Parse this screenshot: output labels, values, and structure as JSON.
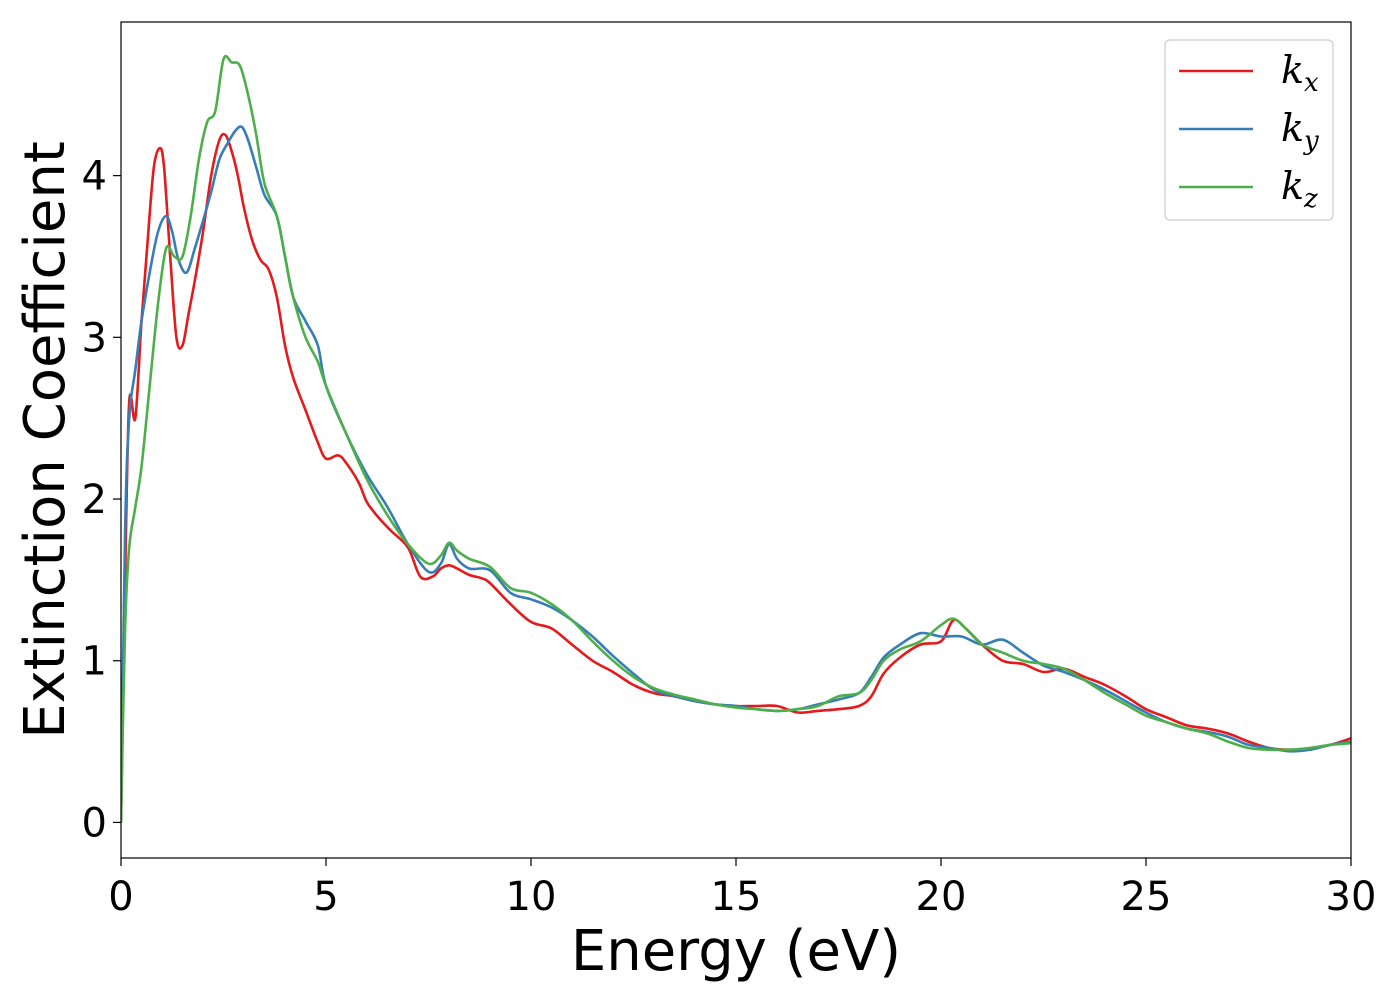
{
  "chart_data": {
    "type": "line",
    "xlabel": "Energy (eV)",
    "ylabel": "Extinction Coefficient",
    "xlim": [
      0,
      30
    ],
    "ylim": [
      -0.22,
      4.95
    ],
    "xticks": [
      0,
      5,
      10,
      15,
      20,
      25,
      30
    ],
    "yticks": [
      0,
      1,
      2,
      3,
      4
    ],
    "grid": false,
    "legend_position": "top-right",
    "series": [
      {
        "name": "k_x",
        "label_base": "k",
        "label_sub": "x",
        "color": "#e41a1c",
        "x": [
          0,
          0.1,
          0.2,
          0.35,
          0.5,
          0.65,
          0.8,
          0.95,
          1.05,
          1.2,
          1.35,
          1.5,
          1.65,
          1.8,
          2.0,
          2.2,
          2.4,
          2.55,
          2.7,
          2.85,
          3.0,
          3.2,
          3.4,
          3.6,
          3.8,
          4.0,
          4.2,
          4.5,
          4.8,
          5.0,
          5.3,
          5.5,
          5.8,
          6.0,
          6.3,
          6.6,
          7.0,
          7.3,
          7.6,
          7.8,
          8.0,
          8.2,
          8.5,
          8.8,
          9.0,
          9.5,
          10.0,
          10.5,
          11.0,
          11.5,
          12.0,
          12.5,
          13.0,
          13.5,
          14.0,
          14.5,
          15.0,
          15.5,
          16.0,
          16.5,
          17.0,
          17.5,
          18.0,
          18.3,
          18.6,
          19.0,
          19.5,
          20.0,
          20.3,
          20.6,
          21.0,
          21.5,
          22.0,
          22.5,
          23.0,
          23.5,
          24.0,
          24.5,
          25.0,
          25.5,
          26.0,
          26.5,
          27.0,
          27.5,
          28.0,
          28.5,
          29.0,
          29.5,
          30.0
        ],
        "y": [
          0,
          1.5,
          2.6,
          2.5,
          3.1,
          3.6,
          4.05,
          4.17,
          4.05,
          3.5,
          3.0,
          2.95,
          3.15,
          3.35,
          3.65,
          4.0,
          4.22,
          4.25,
          4.15,
          4.0,
          3.8,
          3.6,
          3.48,
          3.42,
          3.25,
          2.95,
          2.75,
          2.55,
          2.35,
          2.25,
          2.27,
          2.22,
          2.1,
          1.98,
          1.88,
          1.8,
          1.7,
          1.52,
          1.52,
          1.57,
          1.59,
          1.57,
          1.53,
          1.51,
          1.48,
          1.35,
          1.24,
          1.2,
          1.1,
          1.0,
          0.93,
          0.85,
          0.8,
          0.78,
          0.75,
          0.73,
          0.72,
          0.72,
          0.72,
          0.68,
          0.69,
          0.7,
          0.72,
          0.78,
          0.92,
          1.02,
          1.1,
          1.12,
          1.25,
          1.2,
          1.1,
          1.0,
          0.98,
          0.93,
          0.95,
          0.9,
          0.85,
          0.78,
          0.7,
          0.65,
          0.6,
          0.58,
          0.55,
          0.5,
          0.46,
          0.45,
          0.46,
          0.48,
          0.52
        ]
      },
      {
        "name": "k_y",
        "label_base": "k",
        "label_sub": "y",
        "color": "#377eb8",
        "x": [
          0,
          0.1,
          0.2,
          0.35,
          0.5,
          0.7,
          0.9,
          1.1,
          1.25,
          1.4,
          1.6,
          1.8,
          2.0,
          2.2,
          2.4,
          2.6,
          2.8,
          2.95,
          3.1,
          3.3,
          3.5,
          3.8,
          4.0,
          4.2,
          4.5,
          4.8,
          5.0,
          5.5,
          6.0,
          6.5,
          7.0,
          7.5,
          7.8,
          8.0,
          8.2,
          8.5,
          9.0,
          9.5,
          10.0,
          10.5,
          11.0,
          11.5,
          12.0,
          12.5,
          13.0,
          13.5,
          14.0,
          14.5,
          15.0,
          15.5,
          16.0,
          16.5,
          17.0,
          17.5,
          18.0,
          18.3,
          18.6,
          19.0,
          19.5,
          20.0,
          20.5,
          21.0,
          21.5,
          22.0,
          22.5,
          23.0,
          23.5,
          24.0,
          24.5,
          25.0,
          25.5,
          26.0,
          26.5,
          27.0,
          27.5,
          28.0,
          28.5,
          29.0,
          29.5,
          30.0
        ],
        "y": [
          0,
          1.8,
          2.5,
          2.8,
          3.1,
          3.4,
          3.65,
          3.75,
          3.65,
          3.48,
          3.4,
          3.55,
          3.72,
          3.9,
          4.1,
          4.2,
          4.28,
          4.3,
          4.22,
          4.05,
          3.88,
          3.75,
          3.5,
          3.25,
          3.1,
          2.95,
          2.7,
          2.4,
          2.15,
          1.95,
          1.72,
          1.55,
          1.6,
          1.72,
          1.63,
          1.57,
          1.56,
          1.42,
          1.38,
          1.33,
          1.25,
          1.15,
          1.03,
          0.92,
          0.82,
          0.78,
          0.75,
          0.73,
          0.72,
          0.7,
          0.69,
          0.7,
          0.73,
          0.76,
          0.8,
          0.9,
          1.02,
          1.1,
          1.17,
          1.15,
          1.15,
          1.1,
          1.13,
          1.05,
          0.97,
          0.93,
          0.88,
          0.82,
          0.75,
          0.68,
          0.62,
          0.58,
          0.56,
          0.53,
          0.48,
          0.46,
          0.44,
          0.45,
          0.48,
          0.5
        ]
      },
      {
        "name": "k_z",
        "label_base": "k",
        "label_sub": "z",
        "color": "#4daf4a",
        "x": [
          0,
          0.1,
          0.2,
          0.35,
          0.5,
          0.7,
          0.9,
          1.1,
          1.3,
          1.5,
          1.7,
          1.9,
          2.1,
          2.3,
          2.5,
          2.7,
          2.9,
          3.1,
          3.3,
          3.5,
          3.8,
          4.0,
          4.2,
          4.5,
          4.8,
          5.0,
          5.5,
          6.0,
          6.5,
          7.0,
          7.5,
          7.8,
          8.0,
          8.2,
          8.5,
          9.0,
          9.5,
          10.0,
          10.5,
          11.0,
          11.5,
          12.0,
          12.5,
          13.0,
          13.5,
          14.0,
          14.5,
          15.0,
          15.5,
          16.0,
          16.5,
          17.0,
          17.5,
          18.0,
          18.3,
          18.6,
          19.0,
          19.5,
          20.0,
          20.3,
          20.6,
          21.0,
          21.5,
          22.0,
          22.5,
          23.0,
          23.5,
          24.0,
          24.5,
          25.0,
          25.5,
          26.0,
          26.5,
          27.0,
          27.5,
          28.0,
          28.5,
          29.0,
          29.5,
          30.0
        ],
        "y": [
          0,
          1.2,
          1.7,
          1.95,
          2.2,
          2.7,
          3.2,
          3.55,
          3.5,
          3.5,
          3.75,
          4.1,
          4.33,
          4.4,
          4.72,
          4.7,
          4.68,
          4.5,
          4.25,
          3.95,
          3.75,
          3.5,
          3.25,
          3.0,
          2.85,
          2.7,
          2.4,
          2.12,
          1.9,
          1.72,
          1.6,
          1.65,
          1.73,
          1.68,
          1.63,
          1.58,
          1.45,
          1.42,
          1.35,
          1.25,
          1.12,
          1.0,
          0.9,
          0.83,
          0.79,
          0.76,
          0.73,
          0.71,
          0.7,
          0.69,
          0.7,
          0.72,
          0.78,
          0.8,
          0.88,
          1.0,
          1.07,
          1.12,
          1.22,
          1.26,
          1.2,
          1.1,
          1.05,
          1.0,
          0.98,
          0.95,
          0.88,
          0.8,
          0.73,
          0.66,
          0.62,
          0.58,
          0.55,
          0.5,
          0.46,
          0.45,
          0.45,
          0.46,
          0.48,
          0.49
        ]
      }
    ]
  }
}
